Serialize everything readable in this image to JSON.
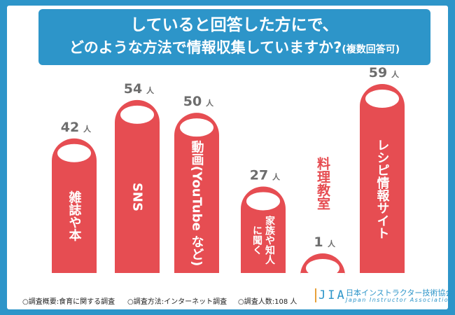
{
  "header": {
    "title_line1": "していると回答した方にで、",
    "title_line2": "どのような方法で情報収集していますか?",
    "title_note": "(複数回答可)"
  },
  "chart_data": {
    "type": "bar",
    "title": "していると回答した方にで、どのような方法で情報収集していますか?(複数回答可)",
    "unit": "人",
    "categories": [
      "雑誌や本",
      "SNS",
      "動画(YouTubeなど)",
      "家族や知人に聞く",
      "料理教室",
      "レシピ情報サイト"
    ],
    "category_lines": [
      [
        "雑誌や本"
      ],
      [
        "SNS"
      ],
      [
        "動画(YouTube など)"
      ],
      [
        "家族や知人",
        "に聞く"
      ],
      [
        "料理教室"
      ],
      [
        "レシピ情報サイト"
      ]
    ],
    "values": [
      42,
      54,
      50,
      27,
      1,
      59
    ],
    "ylim": [
      0,
      59
    ],
    "xlabel": "",
    "ylabel": ""
  },
  "colors": {
    "bar": "#e64d52",
    "value_text": "#6d6d6d",
    "label_inside": "#ffffff",
    "label_outside": "#e64d52",
    "background": "#2d95c9"
  },
  "footer": {
    "note1": "○調査概要:食育に関する調査",
    "note2": "○調査方法:インターネット調査",
    "note3": "○調査人数:108 人"
  },
  "logo": {
    "mark": "JIA",
    "name_ja": "日本インストラクター技術協会",
    "name_en": "Japan Instructor Association"
  }
}
